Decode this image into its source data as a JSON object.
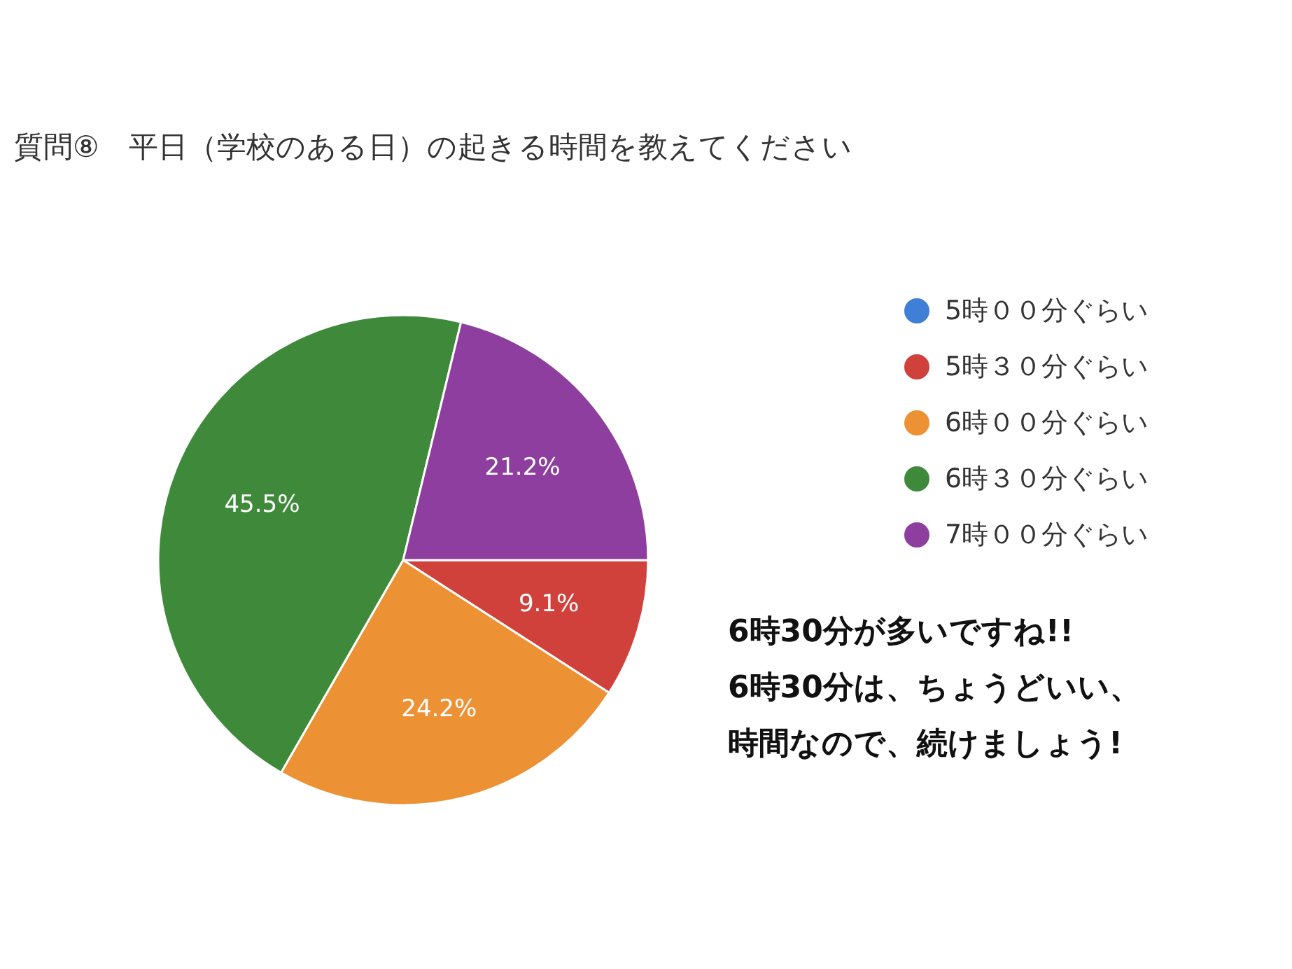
{
  "chart_data": {
    "type": "pie",
    "title": "質問⑧　平日（学校のある日）の起きる時間を教えてください",
    "categories": [
      "5時００分ぐらい",
      "5時３０分ぐらい",
      "6時００分ぐらい",
      "6時３０分ぐらい",
      "7時００分ぐらい"
    ],
    "values": [
      0,
      9.1,
      24.2,
      45.5,
      21.2
    ],
    "colors": [
      "#3f7fd6",
      "#d0413b",
      "#ec9134",
      "#3f8a3a",
      "#8e3e9e"
    ],
    "value_labels": [
      null,
      "9.1%",
      "24.2%",
      "45.5%",
      "21.2%"
    ],
    "legend": "right",
    "annotations": [
      "6時30分が多いですね!!",
      "6時30分は、ちょうどいい、",
      "時間なので、続けましょう!"
    ]
  }
}
